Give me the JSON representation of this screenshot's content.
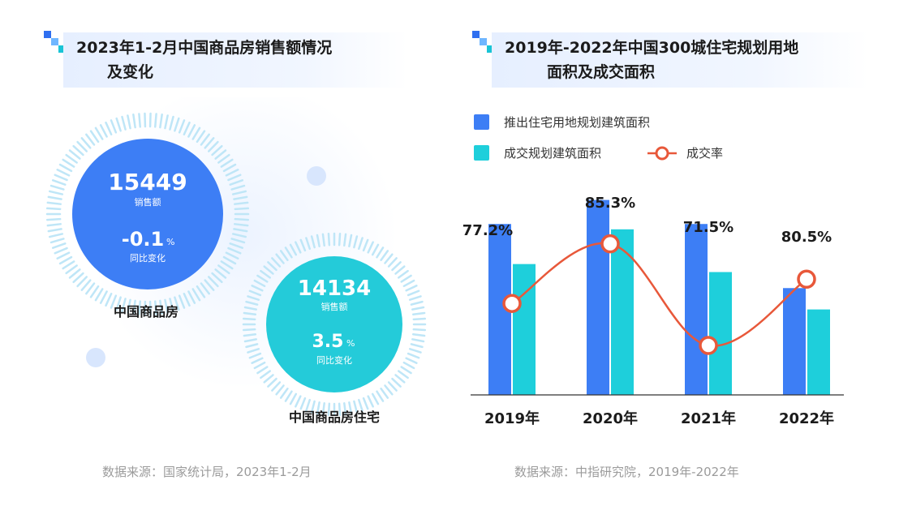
{
  "left": {
    "title_line1": "2023年1-2月中国商品房销售额情况",
    "title_line2": "及变化",
    "circle1": {
      "value": "15449",
      "value_label": "销售额",
      "change": "-0.1",
      "change_unit": "%",
      "change_label": "同比变化",
      "caption": "中国商品房",
      "color": "#3d7ef5"
    },
    "circle2": {
      "value": "14134",
      "value_label": "销售额",
      "change": "3.5",
      "change_unit": "%",
      "change_label": "同比变化",
      "caption": "中国商品房住宅",
      "color": "#24cbd9"
    },
    "source": "数据来源：国家统计局，2023年1-2月"
  },
  "right": {
    "title_line1": "2019年-2022年中国300城住宅规划用地",
    "title_line2": "面积及成交面积",
    "source": "数据来源：中指研究院，2019年-2022年"
  },
  "chart_data": {
    "type": "bar",
    "title": "2019年-2022年中国300城住宅规划用地面积及成交面积",
    "categories": [
      "2019年",
      "2020年",
      "2021年",
      "2022年"
    ],
    "series": [
      {
        "name": "推出住宅用地规划建筑面积",
        "type": "bar",
        "color": "#3d7ef5",
        "values": [
          64,
          73,
          64,
          40
        ]
      },
      {
        "name": "成交规划建筑面积",
        "type": "bar",
        "color": "#1ecfdb",
        "values": [
          49,
          62,
          46,
          32
        ]
      },
      {
        "name": "成交率",
        "type": "line",
        "color": "#e8583a",
        "values": [
          77.2,
          85.3,
          71.5,
          80.5
        ],
        "labels": [
          "77.2%",
          "85.3%",
          "71.5%",
          "80.5%"
        ]
      }
    ],
    "legend_position": "top-left",
    "grid": false
  }
}
